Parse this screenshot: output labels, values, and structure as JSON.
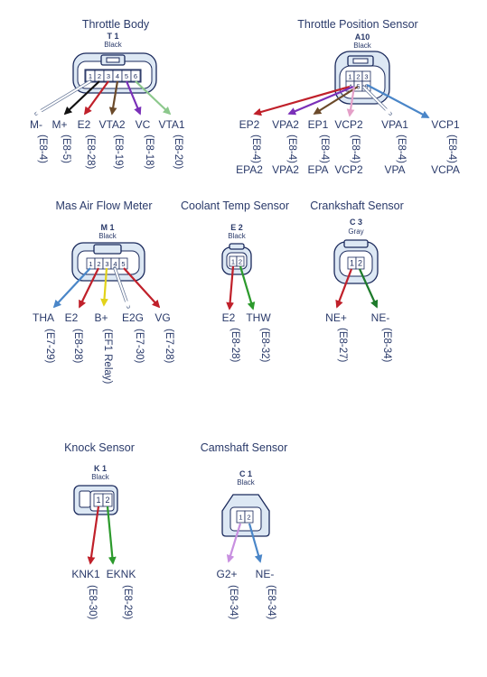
{
  "colors": {
    "red": "#c0202a",
    "black": "#111111",
    "white": "#ffffff",
    "brown": "#6b4a2a",
    "violet": "#7a30b8",
    "green": "#2c9a2c",
    "dark_green": "#1d7a2a",
    "blue": "#4a86c8",
    "yellow": "#e2d21a",
    "pink": "#e4a0c8",
    "lilac": "#c890e0",
    "light_green": "#8cc88c"
  },
  "connectors": {
    "throttle_body": {
      "title": "Throttle Body",
      "code": "T 1",
      "color": "Black",
      "pins_numbered": [
        "1",
        "2",
        "3",
        "4",
        "5",
        "6"
      ],
      "pins": [
        {
          "name": "M-",
          "ref": "(E8-4)",
          "wire": "white"
        },
        {
          "name": "M+",
          "ref": "(E8-5)",
          "wire": "black"
        },
        {
          "name": "E2",
          "ref": "(E8-28)",
          "wire": "red"
        },
        {
          "name": "VTA2",
          "ref": "(E8-19)",
          "wire": "brown"
        },
        {
          "name": "VC",
          "ref": "(E8-18)",
          "wire": "violet"
        },
        {
          "name": "VTA1",
          "ref": "(E8-20)",
          "wire": "light_green"
        }
      ]
    },
    "tps": {
      "title": "Throttle Position Sensor",
      "code": "A10",
      "color": "Black",
      "pins_numbered": [
        "1",
        "2",
        "3",
        "4",
        "5",
        "6"
      ],
      "pins": [
        {
          "name": "EP2",
          "ref": "(E8-4)",
          "alt": "EPA2",
          "wire": "red"
        },
        {
          "name": "VPA2",
          "ref": "(E8-4)",
          "alt": "VPA2",
          "wire": "violet"
        },
        {
          "name": "EP1",
          "ref": "(E8-4)",
          "alt": "EPA",
          "wire": "brown"
        },
        {
          "name": "VCP2",
          "ref": "(E8-4)",
          "alt": "VCP2",
          "wire": "pink"
        },
        {
          "name": "VPA1",
          "ref": "(E8-4)",
          "alt": "VPA",
          "wire": "white"
        },
        {
          "name": "VCP1",
          "ref": "(E8-4)",
          "alt": "VCPA",
          "wire": "blue"
        }
      ]
    },
    "maf": {
      "title": "Mas Air Flow Meter",
      "code": "M 1",
      "color": "Black",
      "pins_numbered": [
        "1",
        "2",
        "3",
        "4",
        "5"
      ],
      "pins": [
        {
          "name": "THA",
          "ref": "(E7-29)",
          "wire": "blue"
        },
        {
          "name": "E2",
          "ref": "(E8-28)",
          "wire": "red"
        },
        {
          "name": "B+",
          "ref": "(EF1 Relay)",
          "wire": "yellow"
        },
        {
          "name": "E2G",
          "ref": "(E7-30)",
          "wire": "white"
        },
        {
          "name": "VG",
          "ref": "(E7-28)",
          "wire": "red"
        }
      ]
    },
    "coolant": {
      "title": "Coolant Temp Sensor",
      "code": "E 2",
      "color": "Black",
      "pins_numbered": [
        "1",
        "2"
      ],
      "pins": [
        {
          "name": "E2",
          "ref": "(E8-28)",
          "wire": "red"
        },
        {
          "name": "THW",
          "ref": "(E8-32)",
          "wire": "green"
        }
      ]
    },
    "crank": {
      "title": "Crankshaft Sensor",
      "code": "C 3",
      "color": "Gray",
      "pins_numbered": [
        "1",
        "2"
      ],
      "pins": [
        {
          "name": "NE+",
          "ref": "(E8-27)",
          "wire": "red"
        },
        {
          "name": "NE-",
          "ref": "(E8-34)",
          "wire": "dark_green"
        }
      ]
    },
    "knock": {
      "title": "Knock Sensor",
      "code": "K 1",
      "color": "Black",
      "pins_numbered": [
        "1",
        "2"
      ],
      "pins": [
        {
          "name": "KNK1",
          "ref": "(E8-30)",
          "wire": "red"
        },
        {
          "name": "EKNK",
          "ref": "(E8-29)",
          "wire": "green"
        }
      ]
    },
    "cam": {
      "title": "Camshaft Sensor",
      "code": "C 1",
      "color": "Black",
      "pins_numbered": [
        "1",
        "2"
      ],
      "pins": [
        {
          "name": "G2+",
          "ref": "(E8-34)",
          "wire": "lilac"
        },
        {
          "name": "NE-",
          "ref": "(E8-34)",
          "wire": "blue"
        }
      ]
    }
  }
}
